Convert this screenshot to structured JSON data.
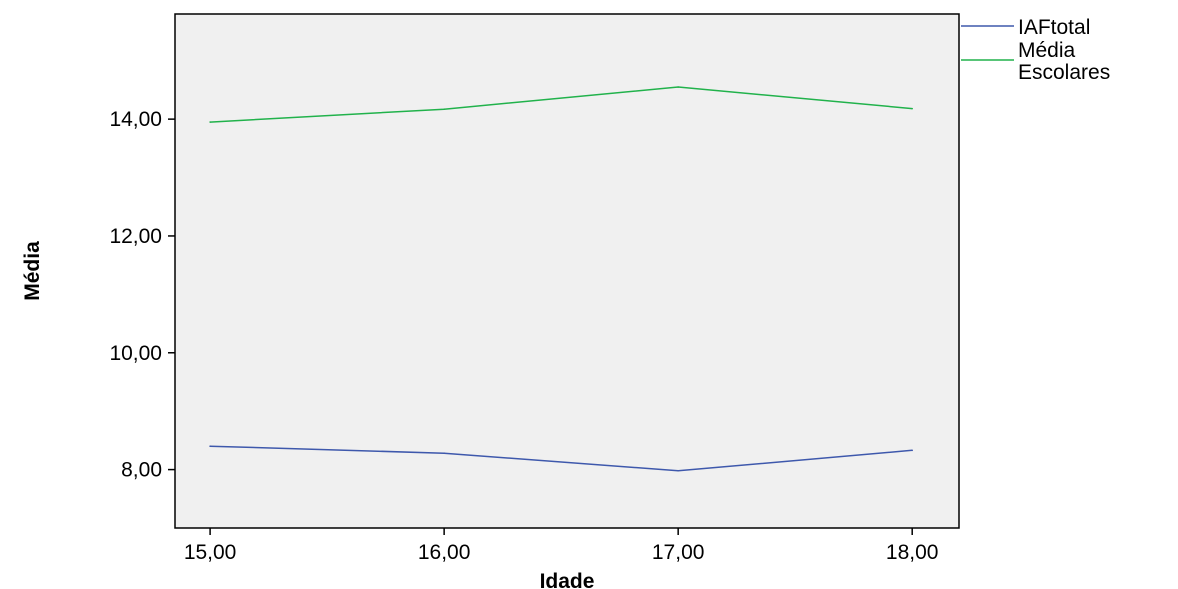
{
  "chart_data": {
    "type": "line",
    "title": "",
    "xlabel": "Idade",
    "ylabel": "Média",
    "x": [
      15,
      16,
      17,
      18
    ],
    "x_tick_labels": [
      "15,00",
      "16,00",
      "17,00",
      "18,00"
    ],
    "y_ticks": [
      8,
      10,
      12,
      14
    ],
    "y_tick_labels": [
      "8,00",
      "10,00",
      "12,00",
      "14,00"
    ],
    "xlim": [
      14.85,
      18.2
    ],
    "ylim": [
      7.0,
      15.8
    ],
    "grid": false,
    "legend_position": "outside-top-right",
    "plot_background": "#f0f0f0",
    "series": [
      {
        "name": "IAFtotal",
        "color": "#3e58ac",
        "values": [
          8.4,
          8.28,
          7.98,
          8.33
        ]
      },
      {
        "name": "Média Escolares",
        "name_lines": [
          "Média",
          "Escolares"
        ],
        "color": "#21b24b",
        "values": [
          13.95,
          14.17,
          14.55,
          14.18
        ]
      }
    ]
  }
}
